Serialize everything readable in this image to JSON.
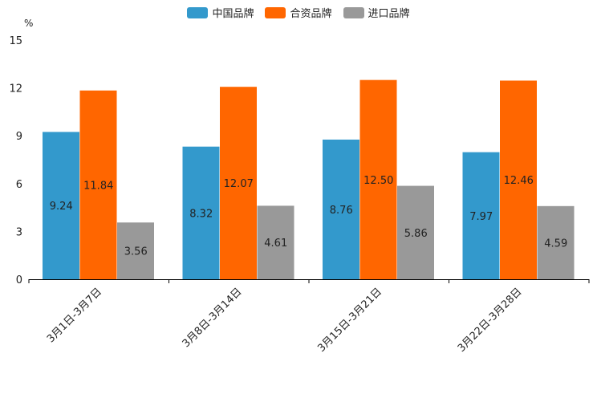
{
  "chart_data": {
    "type": "bar",
    "unit_label": "%",
    "categories": [
      "3月1日-3月7日",
      "3月8日-3月14日",
      "3月15日-3月21日",
      "3月22日-3月28日"
    ],
    "series": [
      {
        "name": "中国品牌",
        "color": "#3399cc",
        "values": [
          9.24,
          8.32,
          8.76,
          7.97
        ],
        "labels": [
          "9.24",
          "8.32",
          "8.76",
          "7.97"
        ]
      },
      {
        "name": "合资品牌",
        "color": "#ff6600",
        "values": [
          11.84,
          12.07,
          12.5,
          12.46
        ],
        "labels": [
          "11.84",
          "12.07",
          "12.50",
          "12.46"
        ]
      },
      {
        "name": "进口品牌",
        "color": "#999999",
        "values": [
          3.56,
          4.61,
          5.86,
          4.59
        ],
        "labels": [
          "3.56",
          "4.61",
          "5.86",
          "4.59"
        ]
      }
    ],
    "yticks": [
      "0",
      "3",
      "6",
      "9",
      "12",
      "15"
    ],
    "ylim": [
      0,
      15
    ],
    "legend_position": "top-center",
    "grid": false
  }
}
